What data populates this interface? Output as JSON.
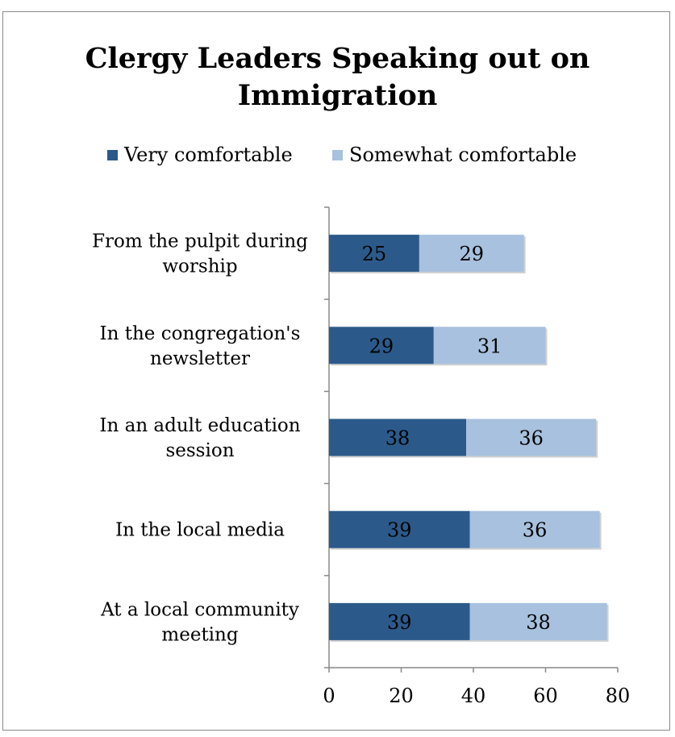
{
  "chart_data": {
    "type": "bar",
    "orientation": "horizontal",
    "stacked": true,
    "title": "Clergy Leaders Speaking out on Immigration",
    "categories": [
      "From the pulpit during worship",
      "In the congregation's newsletter",
      "In an adult education session",
      "In the local media",
      "At a local community meeting"
    ],
    "series": [
      {
        "name": "Very comfortable",
        "color": "#2b5a8a",
        "values": [
          25,
          29,
          38,
          39,
          39
        ]
      },
      {
        "name": "Somewhat comfortable",
        "color": "#a7c1de",
        "values": [
          29,
          31,
          36,
          36,
          38
        ]
      }
    ],
    "xlim": [
      0,
      80
    ],
    "xticks": [
      0,
      20,
      40,
      60,
      80
    ],
    "legend_position": "top",
    "grid": false
  }
}
